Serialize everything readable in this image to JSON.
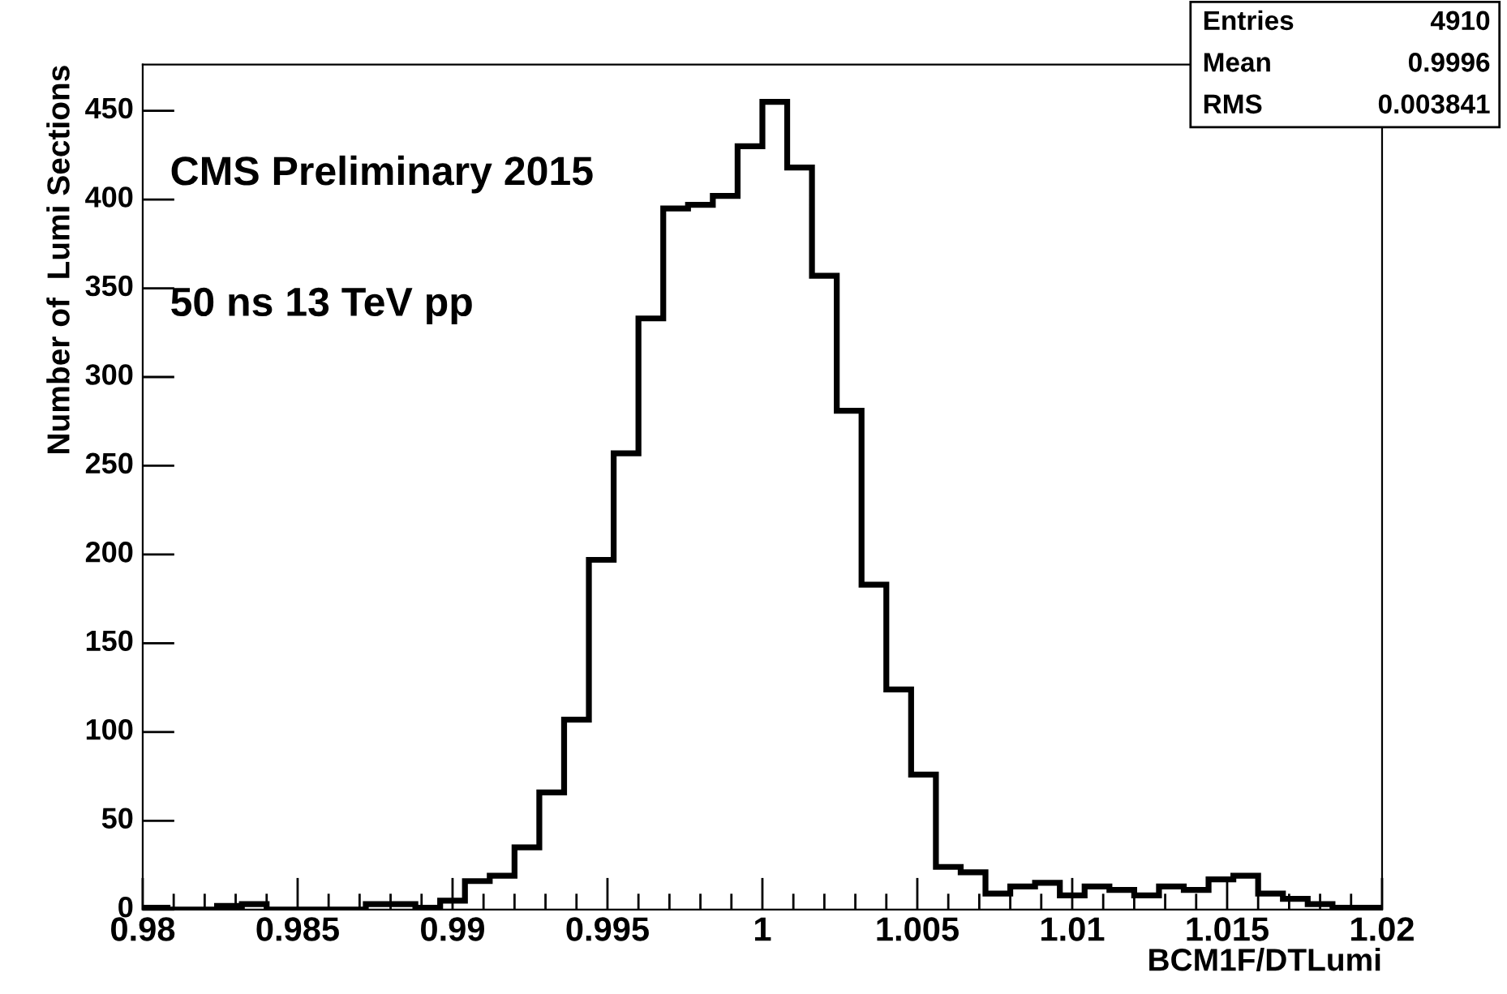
{
  "chart_data": {
    "type": "histogram",
    "xlabel": "BCM1F/DTLumi",
    "ylabel": "Number of  Lumi Sections",
    "annotations": [
      "CMS Preliminary 2015",
      "50 ns 13 TeV pp",
      "Entries 4910",
      "Mean 0.9996",
      "RMS 0.003841"
    ],
    "bins": [
      0.98,
      0.9808,
      0.9816,
      0.9824,
      0.9832,
      0.984,
      0.9848,
      0.9856,
      0.9864,
      0.9872,
      0.988,
      0.9888,
      0.9896,
      0.9904,
      0.9912,
      0.992,
      0.9928,
      0.9936,
      0.9944,
      0.9952,
      0.996,
      0.9968,
      0.9976,
      0.9984,
      0.9992,
      1.0,
      1.0008,
      1.0016,
      1.0024,
      1.0032,
      1.004,
      1.0048,
      1.0056,
      1.0064,
      1.0072,
      1.008,
      1.0088,
      1.0096,
      1.0104,
      1.0112,
      1.012,
      1.0128,
      1.0136,
      1.0144,
      1.0152,
      1.016,
      1.0168,
      1.0176,
      1.0184,
      1.0192,
      1.02
    ],
    "values": [
      1,
      0,
      0,
      2,
      3,
      0,
      0,
      0,
      0,
      3,
      3,
      1,
      5,
      16,
      19,
      35,
      66,
      107,
      197,
      257,
      333,
      395,
      397,
      402,
      430,
      455,
      418,
      357,
      281,
      183,
      124,
      76,
      24,
      21,
      9,
      13,
      15,
      8,
      13,
      11,
      8,
      13,
      11,
      17,
      19,
      9,
      6,
      3,
      1,
      1
    ],
    "color": "#000000",
    "xlim": [
      0.98,
      1.02
    ],
    "xticks": [
      0.98,
      0.985,
      0.99,
      0.995,
      1,
      1.005,
      1.01,
      1.015,
      1.02
    ],
    "ylim": [
      0,
      476
    ],
    "yticks": [
      0,
      50,
      100,
      150,
      200,
      250,
      300,
      350,
      400,
      450
    ],
    "grid": false
  }
}
